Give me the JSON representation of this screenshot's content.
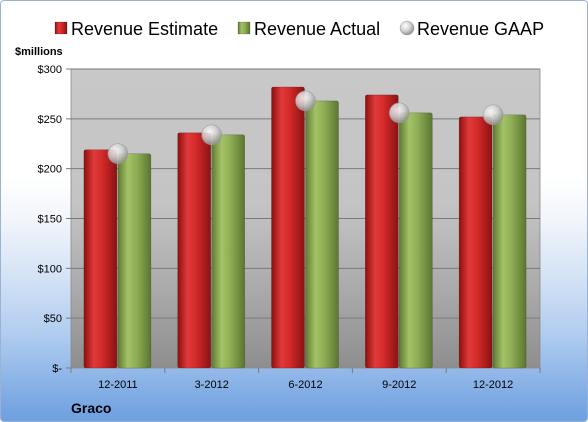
{
  "chart_data": {
    "type": "bar",
    "company": "Graco",
    "unit_label": "$millions",
    "categories": [
      "12-2011",
      "3-2012",
      "6-2012",
      "9-2012",
      "12-2012"
    ],
    "series": [
      {
        "name": "Revenue Estimate",
        "type": "bar",
        "color": "#d42a2a",
        "values": [
          219,
          236,
          282,
          274,
          252
        ]
      },
      {
        "name": "Revenue Actual",
        "type": "bar",
        "color": "#8faf55",
        "values": [
          215,
          234,
          268,
          256,
          254
        ]
      },
      {
        "name": "Revenue GAAP",
        "type": "marker",
        "color": "#c8c8c8",
        "values": [
          215,
          234,
          268,
          256,
          254
        ]
      }
    ],
    "y_ticks": [
      {
        "value": 0,
        "label": "$-"
      },
      {
        "value": 50,
        "label": "$50"
      },
      {
        "value": 100,
        "label": "$100"
      },
      {
        "value": 150,
        "label": "$150"
      },
      {
        "value": 200,
        "label": "$200"
      },
      {
        "value": 250,
        "label": "$250"
      },
      {
        "value": 300,
        "label": "$300"
      }
    ],
    "ylim": [
      0,
      300
    ],
    "grid": true,
    "legend_position": "top"
  }
}
